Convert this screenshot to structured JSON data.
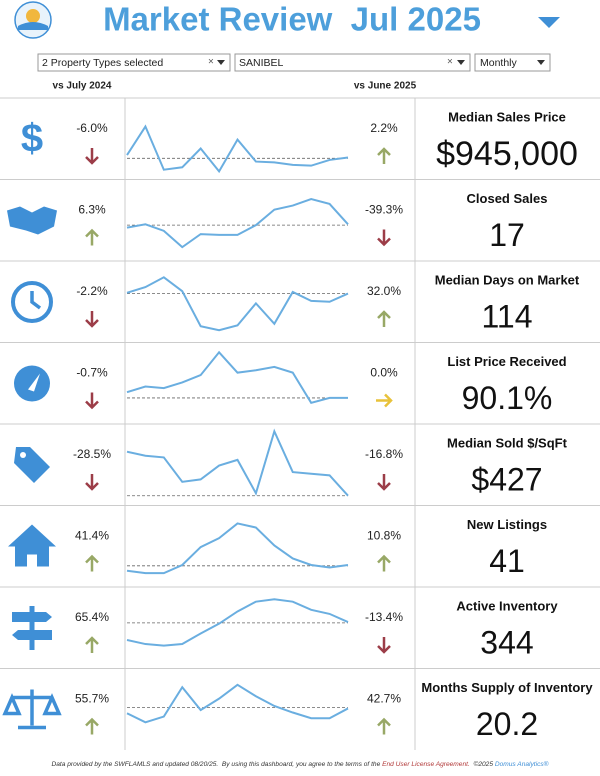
{
  "header": {
    "title": "Market Review  Jul 2025"
  },
  "filters": {
    "property_types": "2 Property Types selected",
    "area": "SANIBEL",
    "period": "Monthly"
  },
  "columns": {
    "yoy": "vs July 2024",
    "mom": "vs June 2025"
  },
  "metrics": [
    {
      "label": "Median Sales Price",
      "value": "$945,000",
      "yoy": "-6.0%",
      "yoy_dir": "down",
      "mom": "2.2%",
      "mom_dir": "up",
      "trend": [
        30,
        65,
        12,
        15,
        38,
        10,
        49,
        22,
        21,
        18,
        17,
        24,
        27
      ],
      "baseline": 26
    },
    {
      "label": "Closed Sales",
      "value": "17",
      "yoy": "6.3%",
      "yoy_dir": "up",
      "mom": "-39.3%",
      "mom_dir": "down",
      "trend": [
        41,
        45,
        37,
        17,
        33,
        32,
        32,
        44,
        63,
        68,
        76,
        70,
        45
      ],
      "baseline": 44
    },
    {
      "label": "Median Days on Market",
      "value": "114",
      "yoy": "-2.2%",
      "yoy_dir": "down",
      "mom": "32.0%",
      "mom_dir": "up",
      "trend": [
        61,
        68,
        80,
        63,
        20,
        15,
        21,
        48,
        23,
        62,
        51,
        50,
        60
      ],
      "baseline": 60
    },
    {
      "label": "List Price Received",
      "value": "90.1%",
      "yoy": "-0.7%",
      "yoy_dir": "down",
      "mom": "0.0%",
      "mom_dir": "flat",
      "trend": [
        39,
        46,
        44,
        51,
        60,
        88,
        63,
        66,
        70,
        63,
        26,
        32,
        32
      ],
      "baseline": 32
    },
    {
      "label": "Median Sold $/SqFt",
      "value": "$427",
      "yoy": "-28.5%",
      "yoy_dir": "down",
      "mom": "-16.8%",
      "mom_dir": "down",
      "trend": [
        66,
        61,
        59,
        29,
        32,
        49,
        56,
        15,
        91,
        41,
        39,
        37,
        12
      ],
      "baseline": 12
    },
    {
      "label": "New Listings",
      "value": "41",
      "yoy": "41.4%",
      "yoy_dir": "up",
      "mom": "10.8%",
      "mom_dir": "up",
      "trend": [
        20,
        17,
        17,
        27,
        49,
        60,
        78,
        73,
        51,
        35,
        27,
        24,
        27
      ],
      "baseline": 26
    },
    {
      "label": "Active Inventory",
      "value": "344",
      "yoy": "65.4%",
      "yoy_dir": "up",
      "mom": "-13.4%",
      "mom_dir": "down",
      "trend": [
        35,
        30,
        28,
        30,
        43,
        55,
        70,
        82,
        85,
        82,
        72,
        67,
        57
      ],
      "baseline": 56
    },
    {
      "label": "Months Supply of Inventory",
      "value": "20.2",
      "yoy": "55.7%",
      "yoy_dir": "up",
      "mom": "42.7%",
      "mom_dir": "up",
      "trend": [
        45,
        34,
        41,
        77,
        49,
        63,
        80,
        66,
        54,
        46,
        39,
        39,
        51
      ],
      "baseline": 52
    }
  ],
  "footer": {
    "text": "Data provided by the SWFLAMLS and updated 08/20/25.  By using this dashboard, you agree to the terms of the ",
    "link": "End User License Agreement.",
    "copyright": "  ©2025 ",
    "brand": "Domus Analytics®"
  }
}
